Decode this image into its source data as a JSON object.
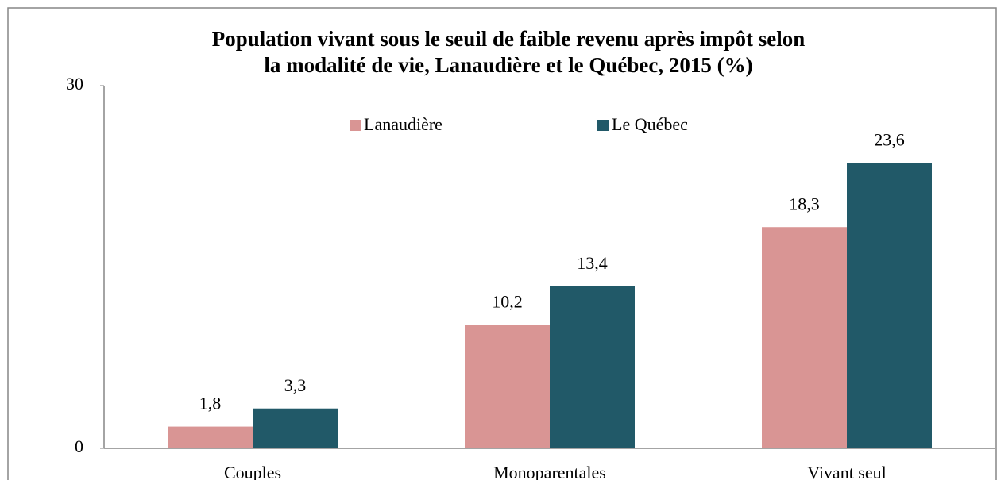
{
  "chart_data": {
    "type": "bar",
    "title": [
      "Population vivant sous le seuil de faible revenu après impôt selon",
      "la modalité de vie, Lanaudière et le Québec, 2015 (%)"
    ],
    "categories": [
      "Couples",
      "Monoparentales",
      "Vivant seul"
    ],
    "series": [
      {
        "name": "Lanaudière",
        "color": "#d99594",
        "values": [
          1.8,
          10.2,
          18.3
        ],
        "value_labels": [
          "1,8",
          "10,2",
          "18,3"
        ]
      },
      {
        "name": "Le Québec",
        "color": "#215968",
        "values": [
          3.3,
          13.4,
          23.6
        ],
        "value_labels": [
          "3,3",
          "13,4",
          "23,6"
        ]
      }
    ],
    "ylim": [
      0,
      30
    ],
    "yticks": [
      0,
      30
    ],
    "grid": false,
    "legend": "top"
  }
}
